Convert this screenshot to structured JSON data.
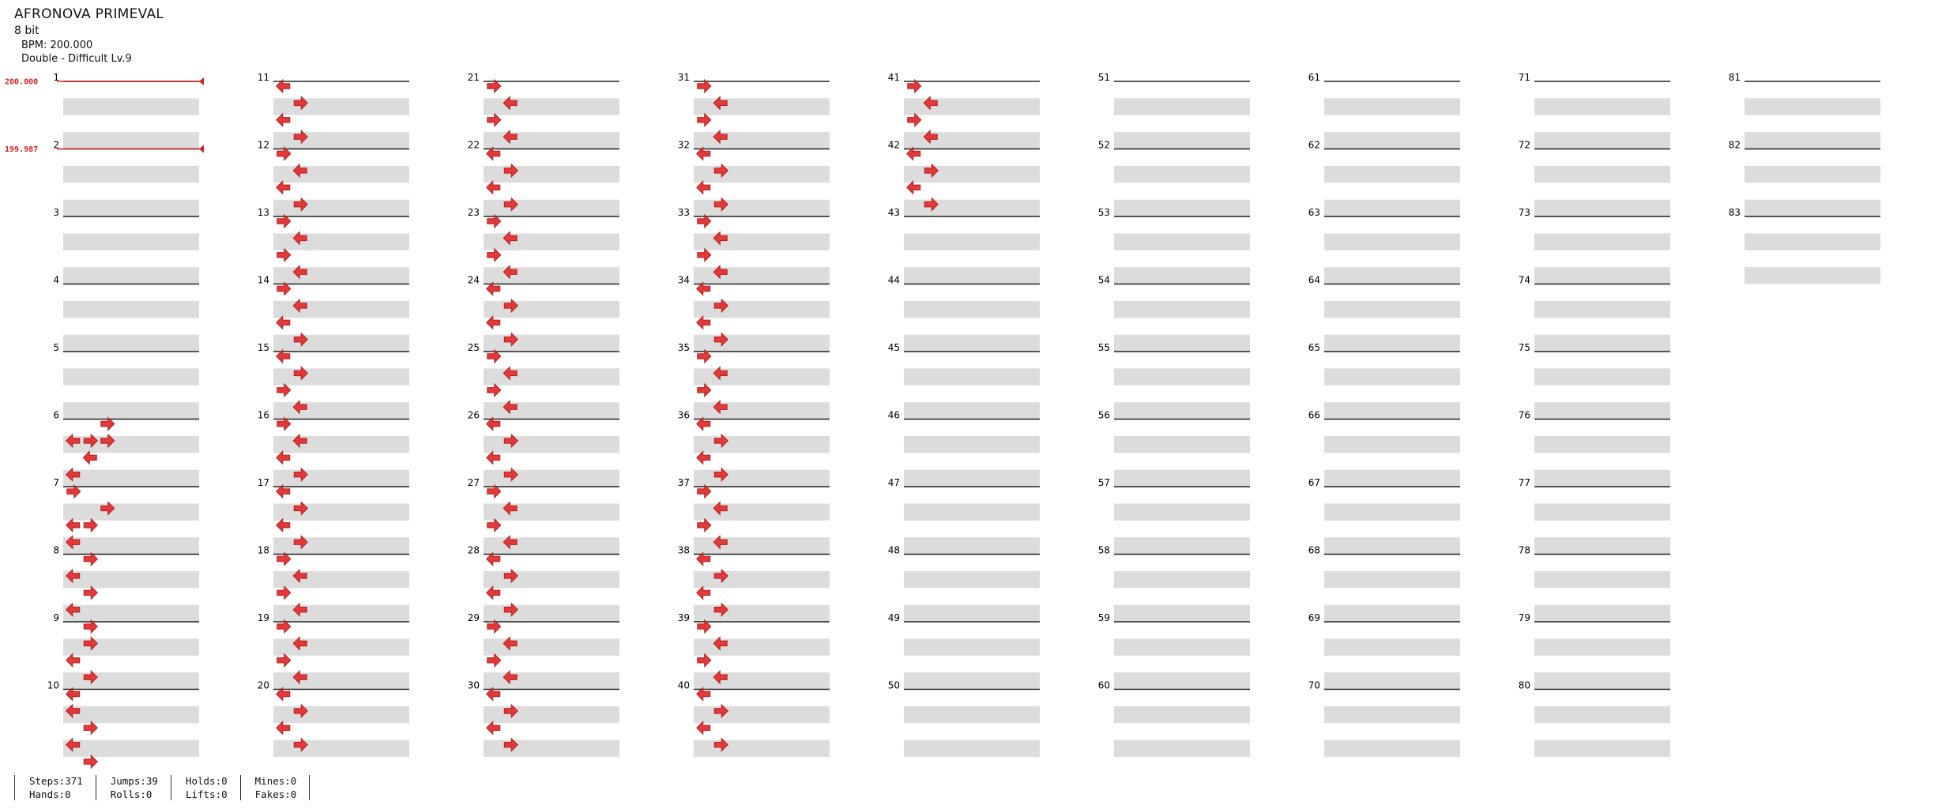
{
  "song": {
    "title": "AFRONOVA PRIMEVAL",
    "subtitle": "8 bit",
    "bpm_line": "BPM: 200.000",
    "chart_line": "Double - Difficult  Lv.9"
  },
  "bpm_markers": [
    {
      "measure": 1,
      "label": "200.000"
    },
    {
      "measure": 2,
      "label": "199.987"
    }
  ],
  "measures_total": 83,
  "measures_per_column": 10,
  "colors": {
    "accent": "#e03a3a",
    "accent_dark": "#b81e1e",
    "blue": "#3e58e0",
    "band": "#dcdcdc",
    "bpm_line": "#d42020"
  },
  "notes": [
    [],
    [],
    [],
    [],
    [],
    [
      [
        2,
        0,
        "R"
      ],
      [
        0,
        2,
        "L"
      ],
      [
        1,
        2,
        "R"
      ],
      [
        2,
        2,
        "R"
      ],
      [
        1,
        4,
        "L"
      ],
      [
        0,
        6,
        "L"
      ],
      [
        0,
        8,
        "R"
      ]
    ],
    [
      [
        2,
        2,
        "R"
      ],
      [
        0,
        4,
        "L"
      ],
      [
        1,
        4,
        "R"
      ],
      [
        0,
        6,
        "L"
      ],
      [
        1,
        8,
        "R"
      ]
    ],
    [
      [
        0,
        2,
        "L"
      ],
      [
        1,
        4,
        "R"
      ],
      [
        0,
        6,
        "L"
      ],
      [
        1,
        8,
        "R"
      ]
    ],
    [
      [
        1,
        2,
        "R"
      ],
      [
        0,
        4,
        "L"
      ],
      [
        1,
        6,
        "R"
      ],
      [
        0,
        8,
        "L"
      ]
    ],
    [
      [
        0,
        2,
        "L"
      ],
      [
        1,
        4,
        "R"
      ],
      [
        0,
        6,
        "L"
      ],
      [
        1,
        8,
        "R"
      ]
    ],
    [
      [
        0,
        0,
        "L"
      ],
      [
        1,
        2,
        "R"
      ],
      [
        0,
        4,
        "L"
      ],
      [
        1,
        6,
        "R"
      ],
      [
        0,
        8,
        "R"
      ]
    ],
    [
      [
        0,
        0,
        "R"
      ],
      [
        1,
        2,
        "L"
      ],
      [
        0,
        4,
        "L"
      ],
      [
        1,
        6,
        "R"
      ]
    ],
    [
      [
        0,
        0,
        "R"
      ],
      [
        1,
        2,
        "L"
      ],
      [
        0,
        4,
        "R"
      ],
      [
        1,
        6,
        "L"
      ]
    ],
    [
      [
        0,
        0,
        "R"
      ],
      [
        1,
        2,
        "L"
      ],
      [
        0,
        4,
        "L"
      ],
      [
        1,
        6,
        "R"
      ]
    ],
    [
      [
        0,
        0,
        "L"
      ],
      [
        1,
        2,
        "R"
      ],
      [
        0,
        4,
        "R"
      ],
      [
        1,
        6,
        "L"
      ]
    ],
    [
      [
        0,
        0,
        "R"
      ],
      [
        1,
        2,
        "L"
      ],
      [
        0,
        4,
        "L"
      ],
      [
        1,
        6,
        "R"
      ]
    ],
    [
      [
        0,
        0,
        "L"
      ],
      [
        1,
        2,
        "R"
      ],
      [
        0,
        4,
        "L"
      ],
      [
        1,
        6,
        "R"
      ]
    ],
    [
      [
        0,
        0,
        "R"
      ],
      [
        1,
        2,
        "L"
      ],
      [
        0,
        4,
        "R"
      ],
      [
        1,
        6,
        "L"
      ]
    ],
    [
      [
        0,
        0,
        "R"
      ],
      [
        1,
        2,
        "L"
      ],
      [
        0,
        4,
        "R"
      ],
      [
        1,
        6,
        "L"
      ]
    ],
    [
      [
        0,
        0,
        "L"
      ],
      [
        1,
        2,
        "R"
      ],
      [
        0,
        4,
        "L"
      ],
      [
        1,
        6,
        "R"
      ]
    ],
    [
      [
        0,
        0,
        "R"
      ],
      [
        1,
        2,
        "L"
      ],
      [
        0,
        4,
        "R"
      ],
      [
        1,
        6,
        "L"
      ]
    ],
    [
      [
        0,
        0,
        "L"
      ],
      [
        1,
        2,
        "R"
      ],
      [
        0,
        4,
        "L"
      ],
      [
        1,
        6,
        "R"
      ]
    ],
    [
      [
        0,
        0,
        "R"
      ],
      [
        1,
        2,
        "L"
      ],
      [
        0,
        4,
        "R"
      ],
      [
        1,
        6,
        "L"
      ]
    ],
    [
      [
        0,
        0,
        "L"
      ],
      [
        1,
        2,
        "R"
      ],
      [
        0,
        4,
        "L"
      ],
      [
        1,
        6,
        "R"
      ]
    ],
    [
      [
        0,
        0,
        "R"
      ],
      [
        1,
        2,
        "L"
      ],
      [
        0,
        4,
        "R"
      ],
      [
        1,
        6,
        "L"
      ]
    ],
    [
      [
        0,
        0,
        "L"
      ],
      [
        1,
        2,
        "R"
      ],
      [
        0,
        4,
        "L"
      ],
      [
        1,
        6,
        "R"
      ]
    ],
    [
      [
        0,
        0,
        "R"
      ],
      [
        1,
        2,
        "L"
      ],
      [
        0,
        4,
        "R"
      ],
      [
        1,
        6,
        "L"
      ]
    ],
    [
      [
        0,
        0,
        "L"
      ],
      [
        1,
        2,
        "R"
      ],
      [
        0,
        4,
        "L"
      ],
      [
        1,
        6,
        "R"
      ]
    ],
    [
      [
        0,
        0,
        "R"
      ],
      [
        1,
        2,
        "L"
      ],
      [
        0,
        4,
        "R"
      ],
      [
        1,
        6,
        "L"
      ]
    ],
    [
      [
        0,
        0,
        "L"
      ],
      [
        1,
        2,
        "R"
      ],
      [
        0,
        4,
        "L"
      ],
      [
        1,
        6,
        "R"
      ]
    ],
    [
      [
        0,
        0,
        "R"
      ],
      [
        1,
        2,
        "L"
      ],
      [
        0,
        4,
        "R"
      ],
      [
        1,
        6,
        "L"
      ]
    ],
    [
      [
        0,
        0,
        "L"
      ],
      [
        1,
        2,
        "R"
      ],
      [
        0,
        4,
        "L"
      ],
      [
        1,
        6,
        "R"
      ]
    ],
    [
      [
        0,
        0,
        "R"
      ],
      [
        1,
        2,
        "L"
      ],
      [
        0,
        4,
        "R"
      ],
      [
        1,
        6,
        "L"
      ]
    ],
    [
      [
        0,
        0,
        "L"
      ],
      [
        1,
        2,
        "R"
      ],
      [
        0,
        4,
        "L"
      ],
      [
        1,
        6,
        "R"
      ]
    ],
    [
      [
        0,
        0,
        "R"
      ],
      [
        1,
        2,
        "L"
      ],
      [
        0,
        4,
        "R"
      ],
      [
        1,
        6,
        "L"
      ]
    ],
    [
      [
        0,
        0,
        "L"
      ],
      [
        1,
        2,
        "R"
      ],
      [
        0,
        4,
        "L"
      ],
      [
        1,
        6,
        "R"
      ]
    ],
    [
      [
        0,
        0,
        "R"
      ],
      [
        1,
        2,
        "L"
      ],
      [
        0,
        4,
        "R"
      ],
      [
        1,
        6,
        "L"
      ]
    ],
    [
      [
        0,
        0,
        "L"
      ],
      [
        1,
        2,
        "R"
      ],
      [
        0,
        4,
        "L"
      ],
      [
        1,
        6,
        "R"
      ]
    ],
    [
      [
        0,
        0,
        "R"
      ],
      [
        1,
        2,
        "L"
      ],
      [
        0,
        4,
        "R"
      ],
      [
        1,
        6,
        "L"
      ]
    ],
    [
      [
        0,
        0,
        "L"
      ],
      [
        1,
        2,
        "R"
      ],
      [
        0,
        4,
        "L"
      ],
      [
        1,
        6,
        "R"
      ]
    ],
    [
      [
        0,
        0,
        "R"
      ],
      [
        1,
        2,
        "L"
      ],
      [
        0,
        4,
        "R"
      ],
      [
        1,
        6,
        "L"
      ]
    ],
    [
      [
        0,
        0,
        "L"
      ],
      [
        1,
        2,
        "R"
      ],
      [
        0,
        4,
        "L"
      ],
      [
        1,
        6,
        "R"
      ]
    ]
  ],
  "stats": {
    "steps": "Steps:371",
    "hands": "Hands:0",
    "jumps": "Jumps:39",
    "rolls": "Rolls:0",
    "holds": "Holds:0",
    "lifts": "Lifts:0",
    "mines": "Mines:0",
    "fakes": "Fakes:0"
  }
}
